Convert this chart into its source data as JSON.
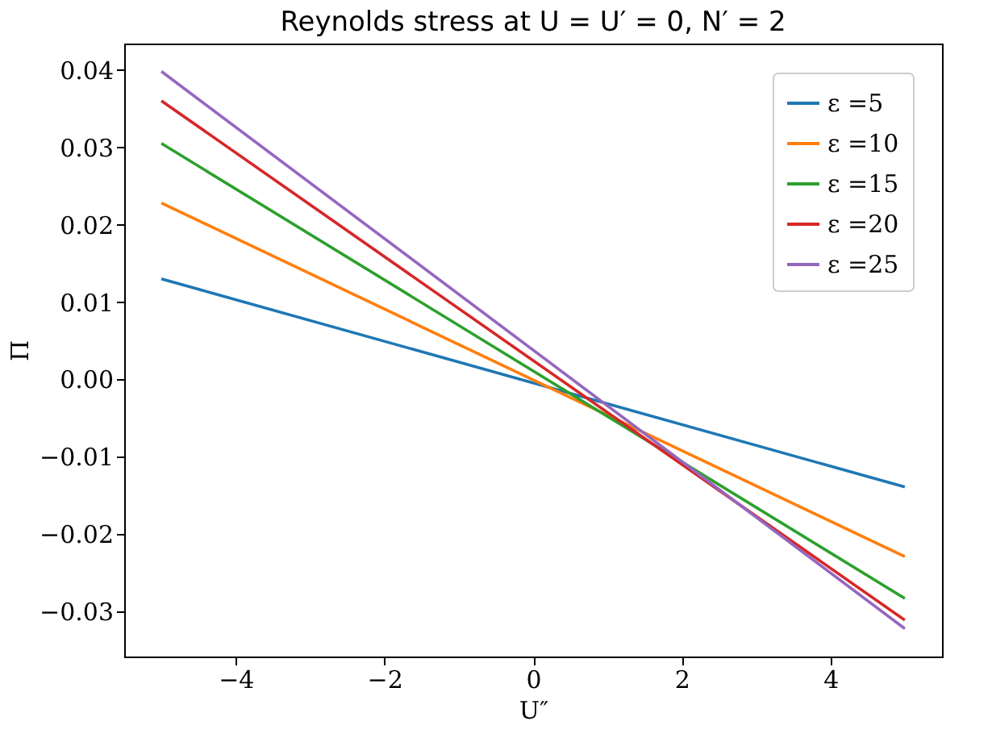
{
  "chart_data": {
    "type": "line",
    "title": "Reynolds stress at U = U′ = 0, N′ = 2",
    "xlabel": "U″",
    "ylabel": "Π",
    "x": [
      -5,
      5
    ],
    "series": [
      {
        "name": "ε =5",
        "color": "#1f77b4",
        "values": [
          0.013,
          -0.0139
        ]
      },
      {
        "name": "ε =10",
        "color": "#ff7f0e",
        "values": [
          0.0228,
          -0.0229
        ]
      },
      {
        "name": "ε =15",
        "color": "#2ca02c",
        "values": [
          0.0305,
          -0.0283
        ]
      },
      {
        "name": "ε =20",
        "color": "#d62728",
        "values": [
          0.036,
          -0.0311
        ]
      },
      {
        "name": "ε =25",
        "color": "#9467bd",
        "values": [
          0.0398,
          -0.0322
        ]
      }
    ],
    "xlim": [
      -5.5,
      5.5
    ],
    "ylim": [
      -0.0358,
      0.0434
    ],
    "xticks": [
      -4,
      -2,
      0,
      2,
      4
    ],
    "yticks": [
      {
        "value": -0.03,
        "label": "−0.03"
      },
      {
        "value": -0.02,
        "label": "−0.02"
      },
      {
        "value": -0.01,
        "label": "−0.01"
      },
      {
        "value": 0,
        "label": "0.00"
      },
      {
        "value": 0.01,
        "label": "0.01"
      },
      {
        "value": 0.02,
        "label": "0.02"
      },
      {
        "value": 0.03,
        "label": "0.03"
      },
      {
        "value": 0.04,
        "label": "0.04"
      }
    ],
    "grid": false,
    "legend": "top right",
    "line_style": "solid",
    "marker": "none"
  }
}
